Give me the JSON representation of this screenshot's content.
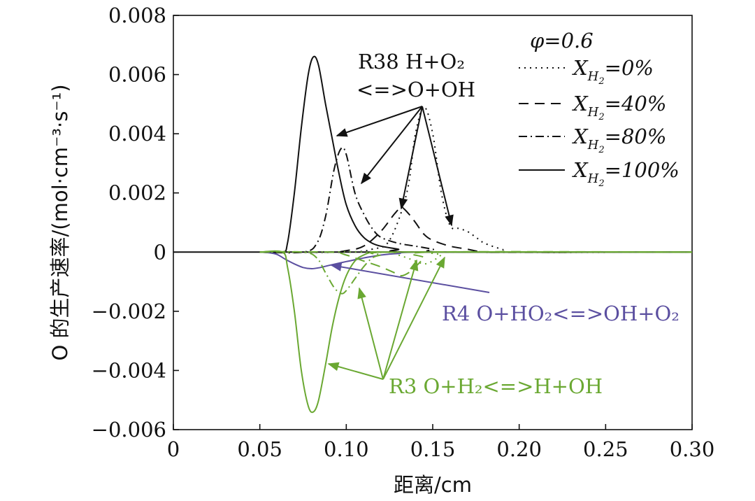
{
  "chart_data": {
    "type": "line",
    "title": "",
    "xlabel": "距离/cm",
    "ylabel": "O 的生产速率/(mol·cm⁻³·s⁻¹)",
    "xlim": [
      0,
      0.3
    ],
    "ylim": [
      -0.006,
      0.008
    ],
    "x_ticks": [
      "0",
      "0.05",
      "0.10",
      "0.15",
      "0.20",
      "0.25",
      "0.30"
    ],
    "y_ticks": [
      "0.008",
      "0.006",
      "0.004",
      "0.002",
      "0",
      "−0.002",
      "−0.004",
      "−0.006"
    ],
    "grid": false,
    "legend_position": "top-right",
    "legend_header": "φ=0.6",
    "legend": [
      {
        "style": "dotted",
        "label": "X_H2=0%"
      },
      {
        "style": "dashed",
        "label": "X_H2=40%"
      },
      {
        "style": "dashdot",
        "label": "X_H2=80%"
      },
      {
        "style": "solid",
        "label": "X_H2=100%"
      }
    ],
    "colors": {
      "R38": "#111111",
      "R4": "#5b4fa0",
      "R3": "#6aa832"
    },
    "annotations": {
      "R38_line1": "R38 H+O₂",
      "R38_line2": "<=>O+OH",
      "R4": "R4 O+HO₂<=>OH+O₂",
      "R3": "R3 O+H₂<=>H+OH"
    },
    "series": [
      {
        "reaction": "R38",
        "style": "dotted",
        "x": [
          0.05,
          0.1,
          0.115,
          0.125,
          0.135,
          0.14,
          0.145,
          0.15,
          0.155,
          0.16,
          0.165,
          0.17,
          0.175,
          0.18,
          0.19,
          0.2,
          0.3
        ],
        "y": [
          0,
          0,
          0.0001,
          0.0004,
          0.002,
          0.004,
          0.0049,
          0.004,
          0.002,
          0.0009,
          0.0008,
          0.0007,
          0.0005,
          0.0003,
          0.0001,
          0,
          0
        ]
      },
      {
        "reaction": "R38",
        "style": "dashed",
        "x": [
          0.05,
          0.09,
          0.1,
          0.11,
          0.12,
          0.128,
          0.132,
          0.136,
          0.14,
          0.145,
          0.15,
          0.16,
          0.17,
          0.18,
          0.2,
          0.3
        ],
        "y": [
          0,
          0,
          5e-05,
          0.0002,
          0.0007,
          0.0013,
          0.0015,
          0.0013,
          0.001,
          0.0006,
          0.0004,
          0.0002,
          0.0001,
          0,
          0,
          0
        ]
      },
      {
        "reaction": "R38",
        "style": "dashdot",
        "x": [
          0.05,
          0.075,
          0.083,
          0.088,
          0.093,
          0.097,
          0.1,
          0.105,
          0.11,
          0.115,
          0.12,
          0.13,
          0.14,
          0.15,
          0.16,
          0.3
        ],
        "y": [
          0,
          0,
          0.0003,
          0.0012,
          0.0028,
          0.0035,
          0.0033,
          0.002,
          0.0013,
          0.0008,
          0.0005,
          0.0003,
          0.0002,
          0.0001,
          0,
          0
        ]
      },
      {
        "reaction": "R38",
        "style": "solid",
        "x": [
          0.05,
          0.063,
          0.066,
          0.07,
          0.074,
          0.078,
          0.081,
          0.084,
          0.088,
          0.092,
          0.096,
          0.1,
          0.105,
          0.11,
          0.115,
          0.12,
          0.13,
          0.14,
          0.3
        ],
        "y": [
          0,
          0,
          0.0003,
          0.002,
          0.0042,
          0.006,
          0.0066,
          0.0063,
          0.005,
          0.0038,
          0.0026,
          0.0016,
          0.0009,
          0.0005,
          0.0003,
          0.0002,
          0.0001,
          0,
          0
        ]
      },
      {
        "reaction": "R4",
        "style": "solid",
        "x": [
          0.05,
          0.055,
          0.06,
          0.065,
          0.07,
          0.075,
          0.08,
          0.085,
          0.09,
          0.1,
          0.11,
          0.12,
          0.13,
          0.15,
          0.3
        ],
        "y": [
          0,
          -2e-05,
          -8e-05,
          -0.00025,
          -0.0004,
          -0.00052,
          -0.00056,
          -0.00052,
          -0.00045,
          -0.00032,
          -0.0002,
          -0.0001,
          -5e-05,
          0,
          0
        ]
      },
      {
        "reaction": "R3",
        "style": "solid",
        "x": [
          0.05,
          0.063,
          0.066,
          0.07,
          0.074,
          0.078,
          0.081,
          0.084,
          0.088,
          0.092,
          0.096,
          0.1,
          0.105,
          0.11,
          0.115,
          0.12,
          0.13,
          0.3
        ],
        "y": [
          0,
          0,
          -0.0005,
          -0.002,
          -0.004,
          -0.0052,
          -0.0054,
          -0.005,
          -0.0038,
          -0.0025,
          -0.0015,
          -0.0008,
          -0.0003,
          -0.0001,
          0,
          0,
          0,
          0
        ]
      },
      {
        "reaction": "R3",
        "style": "dashdot",
        "x": [
          0.05,
          0.075,
          0.083,
          0.088,
          0.093,
          0.097,
          0.1,
          0.105,
          0.11,
          0.115,
          0.12,
          0.13,
          0.3
        ],
        "y": [
          0,
          0,
          -0.0002,
          -0.0007,
          -0.0012,
          -0.0014,
          -0.0013,
          -0.0009,
          -0.0005,
          -0.0002,
          -0.0001,
          0,
          0
        ]
      },
      {
        "reaction": "R3",
        "style": "dashed",
        "x": [
          0.05,
          0.09,
          0.1,
          0.11,
          0.12,
          0.128,
          0.132,
          0.136,
          0.14,
          0.145,
          0.15,
          0.3
        ],
        "y": [
          0,
          0,
          -0.0001,
          -0.0003,
          -0.0005,
          -0.0007,
          -0.0008,
          -0.0007,
          -0.0005,
          -0.0002,
          0,
          0
        ]
      },
      {
        "reaction": "R3",
        "style": "dotted",
        "x": [
          0.05,
          0.12,
          0.13,
          0.14,
          0.145,
          0.15,
          0.155,
          0.16,
          0.3
        ],
        "y": [
          0,
          0,
          -0.0001,
          -0.0003,
          -0.0004,
          -0.0003,
          -0.0001,
          0,
          0
        ]
      }
    ]
  }
}
